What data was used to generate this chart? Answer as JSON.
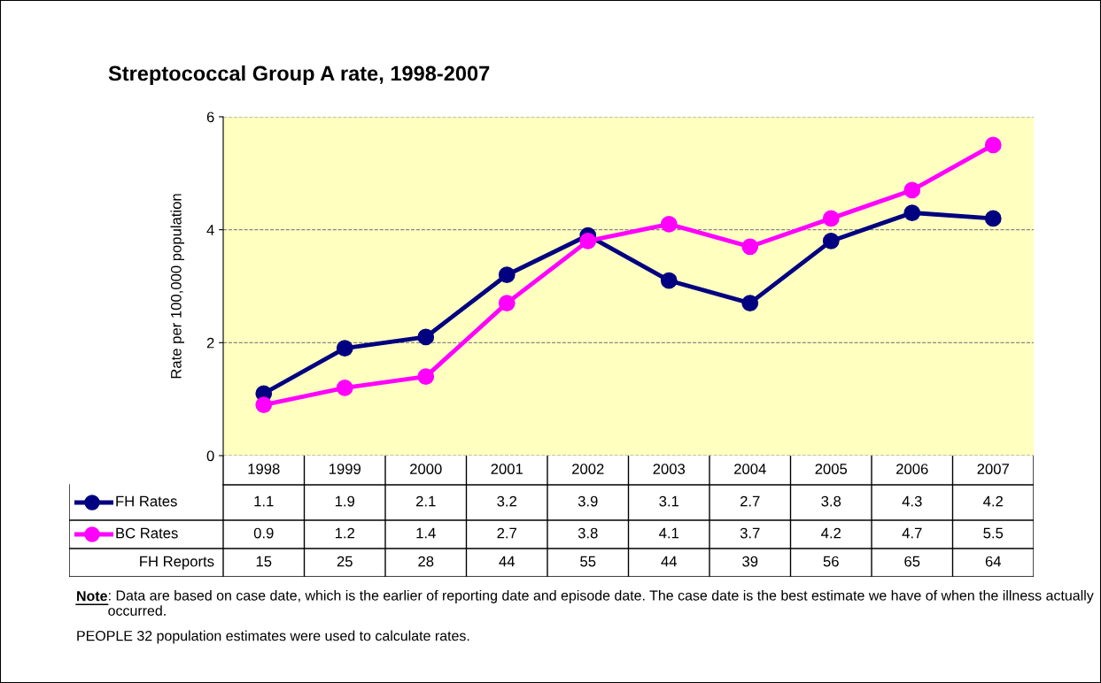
{
  "chart_data": {
    "type": "line",
    "title": "Streptococcal Group A rate, 1998-2007",
    "ylabel": "Rate per 100,000 population",
    "categories": [
      "1998",
      "1999",
      "2000",
      "2001",
      "2002",
      "2003",
      "2004",
      "2005",
      "2006",
      "2007"
    ],
    "series": [
      {
        "name": "FH Rates",
        "color": "#000080",
        "values": [
          1.1,
          1.9,
          2.1,
          3.2,
          3.9,
          3.1,
          2.7,
          3.8,
          4.3,
          4.2
        ]
      },
      {
        "name": "BC Rates",
        "color": "#ff00ff",
        "values": [
          0.9,
          1.2,
          1.4,
          2.7,
          3.8,
          4.1,
          3.7,
          4.2,
          4.7,
          5.5
        ]
      }
    ],
    "ylim": [
      0,
      6
    ],
    "yticks": [
      0,
      2,
      4,
      6
    ],
    "grid": "y",
    "marker": "circle",
    "line_style": "solid",
    "data_labels": true,
    "legend": "bottom left",
    "annotations": [
      "FH Reports",
      "15",
      "25",
      "28",
      "44",
      "55",
      "44",
      "39",
      "56",
      "65",
      "64",
      "Note: Data are based on case date, which is the earlier of reporting date and episode date. The case date is the best estimate we have of when the illness actually occurred.",
      "PEOPLE 32 population estimates were used to calculate rates."
    ]
  }
}
